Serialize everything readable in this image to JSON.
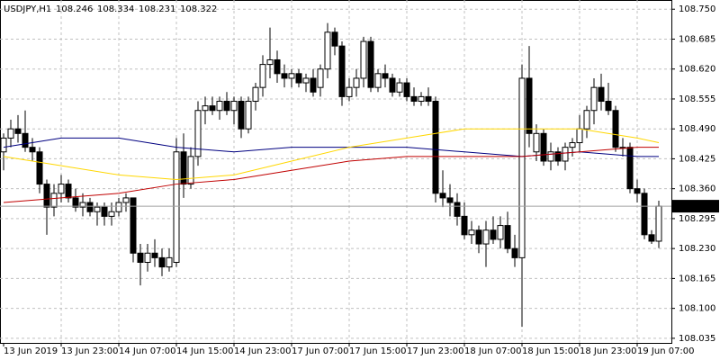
{
  "chart_data": {
    "type": "candlestick",
    "symbol": "USDJPY,H1",
    "grid": true,
    "up_color": "#ffffff",
    "down_color": "#000000",
    "outline_color": "#000000",
    "price_line_color": "#a0a0a0",
    "categories": [
      "13 Jun 2019",
      null,
      null,
      null,
      null,
      null,
      null,
      null,
      "13 Jun 23:00",
      null,
      null,
      null,
      null,
      null,
      null,
      null,
      "14 Jun 07:00",
      null,
      null,
      null,
      null,
      null,
      null,
      null,
      "14 Jun 15:00",
      null,
      null,
      null,
      null,
      null,
      null,
      null,
      "14 Jun 23:00",
      null,
      null,
      null,
      null,
      null,
      null,
      null,
      "17 Jun 07:00",
      null,
      null,
      null,
      null,
      null,
      null,
      null,
      "17 Jun 15:00",
      null,
      null,
      null,
      null,
      null,
      null,
      null,
      "17 Jun 23:00",
      null,
      null,
      null,
      null,
      null,
      null,
      null,
      "18 Jun 07:00",
      null,
      null,
      null,
      null,
      null,
      null,
      null,
      "18 Jun 15:00",
      null,
      null,
      null,
      null,
      null,
      null,
      null,
      "18 Jun 23:00",
      null,
      null,
      null,
      null,
      null,
      null,
      null,
      "19 Jun 07:00",
      null,
      null,
      null
    ],
    "candles": [
      [
        108.44,
        108.48,
        108.4,
        108.47
      ],
      [
        108.47,
        108.51,
        108.45,
        108.49
      ],
      [
        108.49,
        108.52,
        108.46,
        108.48
      ],
      [
        108.48,
        108.53,
        108.44,
        108.45
      ],
      [
        108.45,
        108.47,
        108.42,
        108.44
      ],
      [
        108.44,
        108.45,
        108.35,
        108.37
      ],
      [
        108.37,
        108.38,
        108.26,
        108.32
      ],
      [
        108.32,
        108.37,
        108.3,
        108.35
      ],
      [
        108.35,
        108.39,
        108.33,
        108.37
      ],
      [
        108.37,
        108.38,
        108.33,
        108.34
      ],
      [
        108.34,
        108.36,
        108.31,
        108.32
      ],
      [
        108.32,
        108.35,
        108.3,
        108.33
      ],
      [
        108.33,
        108.34,
        108.3,
        108.31
      ],
      [
        108.31,
        108.33,
        108.28,
        108.32
      ],
      [
        108.32,
        108.33,
        108.28,
        108.3
      ],
      [
        108.3,
        108.33,
        108.28,
        108.31
      ],
      [
        108.31,
        108.34,
        108.3,
        108.33
      ],
      [
        108.33,
        108.35,
        108.31,
        108.34
      ],
      [
        108.34,
        108.34,
        108.2,
        108.22
      ],
      [
        108.22,
        108.24,
        108.15,
        108.2
      ],
      [
        108.2,
        108.24,
        108.18,
        108.22
      ],
      [
        108.22,
        108.25,
        108.19,
        108.21
      ],
      [
        108.21,
        108.23,
        108.17,
        108.19
      ],
      [
        108.19,
        108.23,
        108.18,
        108.21
      ],
      [
        108.2,
        108.47,
        108.19,
        108.44
      ],
      [
        108.44,
        108.48,
        108.34,
        108.37
      ],
      [
        108.37,
        108.45,
        108.36,
        108.43
      ],
      [
        108.43,
        108.55,
        108.41,
        108.53
      ],
      [
        108.53,
        108.56,
        108.5,
        108.54
      ],
      [
        108.54,
        108.56,
        108.52,
        108.53
      ],
      [
        108.53,
        108.56,
        108.51,
        108.55
      ],
      [
        108.55,
        108.57,
        108.52,
        108.53
      ],
      [
        108.53,
        108.56,
        108.5,
        108.55
      ],
      [
        108.55,
        108.56,
        108.47,
        108.49
      ],
      [
        108.49,
        108.56,
        108.48,
        108.55
      ],
      [
        108.55,
        108.59,
        108.53,
        108.58
      ],
      [
        108.58,
        108.65,
        108.56,
        108.63
      ],
      [
        108.63,
        108.71,
        108.6,
        108.64
      ],
      [
        108.64,
        108.66,
        108.59,
        108.61
      ],
      [
        108.61,
        108.63,
        108.58,
        108.6
      ],
      [
        108.6,
        108.62,
        108.58,
        108.61
      ],
      [
        108.61,
        108.62,
        108.58,
        108.59
      ],
      [
        108.59,
        108.61,
        108.57,
        108.6
      ],
      [
        108.6,
        108.62,
        108.56,
        108.57
      ],
      [
        108.58,
        108.63,
        108.56,
        108.62
      ],
      [
        108.62,
        108.72,
        108.6,
        108.7
      ],
      [
        108.7,
        108.71,
        108.65,
        108.67
      ],
      [
        108.67,
        108.68,
        108.54,
        108.56
      ],
      [
        108.56,
        108.6,
        108.55,
        108.58
      ],
      [
        108.58,
        108.62,
        108.56,
        108.6
      ],
      [
        108.6,
        108.69,
        108.58,
        108.68
      ],
      [
        108.68,
        108.69,
        108.57,
        108.58
      ],
      [
        108.58,
        108.62,
        108.57,
        108.61
      ],
      [
        108.61,
        108.63,
        108.58,
        108.6
      ],
      [
        108.6,
        108.61,
        108.56,
        108.57
      ],
      [
        108.57,
        108.6,
        108.56,
        108.59
      ],
      [
        108.59,
        108.6,
        108.55,
        108.56
      ],
      [
        108.56,
        108.58,
        108.54,
        108.55
      ],
      [
        108.55,
        108.57,
        108.54,
        108.56
      ],
      [
        108.56,
        108.58,
        108.54,
        108.55
      ],
      [
        108.55,
        108.56,
        108.33,
        108.35
      ],
      [
        108.35,
        108.4,
        108.32,
        108.34
      ],
      [
        108.34,
        108.37,
        108.3,
        108.33
      ],
      [
        108.33,
        108.35,
        108.28,
        108.3
      ],
      [
        108.3,
        108.33,
        108.25,
        108.26
      ],
      [
        108.26,
        108.29,
        108.24,
        108.27
      ],
      [
        108.27,
        108.28,
        108.22,
        108.24
      ],
      [
        108.24,
        108.29,
        108.19,
        108.27
      ],
      [
        108.27,
        108.3,
        108.24,
        108.25
      ],
      [
        108.25,
        108.3,
        108.23,
        108.28
      ],
      [
        108.28,
        108.31,
        108.22,
        108.23
      ],
      [
        108.23,
        108.26,
        108.19,
        108.21
      ],
      [
        108.21,
        108.63,
        108.06,
        108.6
      ],
      [
        108.6,
        108.67,
        108.45,
        108.48
      ],
      [
        108.44,
        108.5,
        108.42,
        108.48
      ],
      [
        108.48,
        108.49,
        108.41,
        108.42
      ],
      [
        108.42,
        108.46,
        108.4,
        108.44
      ],
      [
        108.44,
        108.45,
        108.41,
        108.42
      ],
      [
        108.42,
        108.46,
        108.4,
        108.45
      ],
      [
        108.45,
        108.47,
        108.43,
        108.46
      ],
      [
        108.46,
        108.52,
        108.44,
        108.49
      ],
      [
        108.49,
        108.54,
        108.47,
        108.53
      ],
      [
        108.53,
        108.6,
        108.5,
        108.58
      ],
      [
        108.58,
        108.61,
        108.53,
        108.55
      ],
      [
        108.55,
        108.59,
        108.52,
        108.53
      ],
      [
        108.53,
        108.54,
        108.44,
        108.45
      ],
      [
        108.45,
        108.47,
        108.43,
        108.45
      ],
      [
        108.45,
        108.46,
        108.35,
        108.36
      ],
      [
        108.36,
        108.38,
        108.33,
        108.35
      ],
      [
        108.35,
        108.36,
        108.25,
        108.26
      ],
      [
        108.26,
        108.27,
        108.24,
        108.246
      ],
      [
        108.246,
        108.334,
        108.231,
        108.322
      ]
    ],
    "series": [
      {
        "color": "#000080",
        "x": [
          0,
          8,
          16,
          24,
          32,
          40,
          48,
          56,
          64,
          72,
          80,
          88,
          91
        ],
        "values": [
          108.45,
          108.47,
          108.47,
          108.45,
          108.44,
          108.45,
          108.45,
          108.45,
          108.44,
          108.43,
          108.44,
          108.43,
          108.43
        ]
      },
      {
        "color": "#ffd700",
        "x": [
          0,
          8,
          16,
          24,
          32,
          40,
          48,
          56,
          64,
          72,
          80,
          88,
          91
        ],
        "values": [
          108.43,
          108.41,
          108.39,
          108.38,
          108.39,
          108.42,
          108.45,
          108.47,
          108.49,
          108.49,
          108.49,
          108.47,
          108.46
        ]
      },
      {
        "color": "#c00000",
        "x": [
          0,
          8,
          16,
          24,
          32,
          40,
          48,
          56,
          64,
          72,
          80,
          88,
          91
        ],
        "values": [
          108.33,
          108.34,
          108.35,
          108.37,
          108.38,
          108.4,
          108.42,
          108.43,
          108.43,
          108.43,
          108.44,
          108.45,
          108.45
        ]
      }
    ],
    "ylim": [
      108.025,
      108.77
    ],
    "yticks": [
      {
        "value": 108.75,
        "label": "108.750"
      },
      108.685,
      {
        "value": 108.62,
        "label": "108.620"
      },
      108.555,
      {
        "value": 108.49,
        "label": "108.490"
      },
      108.425,
      {
        "value": 108.36,
        "label": "108.360"
      },
      108.295,
      {
        "value": 108.23,
        "label": "108.230"
      },
      108.165,
      {
        "value": 108.1,
        "label": "108.100"
      },
      108.035
    ]
  }
}
